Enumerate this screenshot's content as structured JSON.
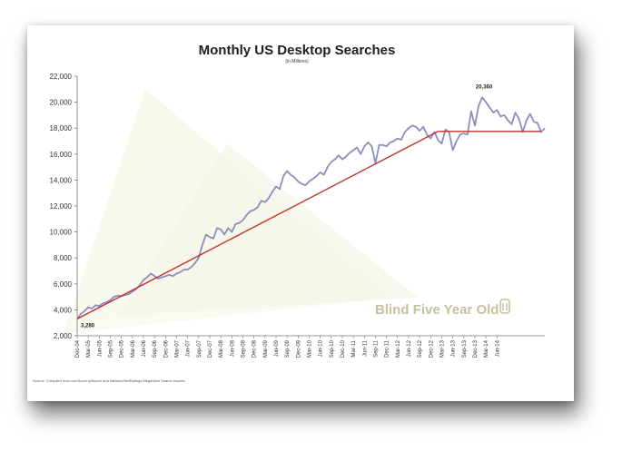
{
  "chart_data": {
    "type": "line",
    "title": "Monthly US Desktop Searches",
    "subtitle": "(in Millions)",
    "ylim": [
      2000,
      22000
    ],
    "yticks": [
      "2,000",
      "4,000",
      "6,000",
      "8,000",
      "10,000",
      "12,000",
      "14,000",
      "16,000",
      "18,000",
      "20,000",
      "22,000"
    ],
    "ytick_values": [
      2000,
      4000,
      6000,
      8000,
      10000,
      12000,
      14000,
      16000,
      18000,
      20000,
      22000
    ],
    "xticks": [
      "Dec-04",
      "Mar-05",
      "Jun-05",
      "Sep-05",
      "Dec-05",
      "Mar-06",
      "Jun-06",
      "Sep-06",
      "Dec-06",
      "Mar-07",
      "Jun-07",
      "Sep-07",
      "Dec-07",
      "Mar-08",
      "Jun-08",
      "Sep-08",
      "Dec-08",
      "Mar-09",
      "Jun-09",
      "Sep-09",
      "Dec-09",
      "Mar-10",
      "Jun-10",
      "Sep-10",
      "Dec-10",
      "Mar-11",
      "Jun-11",
      "Sep-11",
      "Dec-11",
      "Mar-12",
      "Jun-12",
      "Sep-12",
      "Dec-12",
      "Mar-13",
      "Jun-13",
      "Sep-13",
      "Dec-13",
      "Mar-14",
      "Jun-14"
    ],
    "series": [
      {
        "color": "#8a8fbd",
        "values": [
          3280,
          3700,
          3900,
          4200,
          4100,
          4350,
          4300,
          4500,
          4600,
          4750,
          5000,
          5100,
          5050,
          5150,
          5200,
          5400,
          5600,
          5900,
          6300,
          6500,
          6800,
          6600,
          6400,
          6500,
          6600,
          6700,
          6600,
          6800,
          6900,
          7100,
          7100,
          7300,
          7600,
          8000,
          9000,
          9800,
          9600,
          9500,
          10300,
          10200,
          9800,
          10300,
          10000,
          10600,
          10700,
          10900,
          11300,
          11600,
          11700,
          11900,
          12400,
          12300,
          12600,
          13100,
          13500,
          13300,
          14300,
          14700,
          14400,
          14200,
          13900,
          13700,
          13600,
          13900,
          14100,
          14300,
          14600,
          14400,
          15000,
          15400,
          15600,
          15900,
          15600,
          15800,
          16100,
          16300,
          16500,
          16000,
          16600,
          16900,
          16600,
          15300,
          16700,
          16700,
          16600,
          16900,
          17000,
          17200,
          17100,
          17700,
          18000,
          18200,
          18100,
          17800,
          18100,
          17500,
          17200,
          17700,
          17100,
          16800,
          17900,
          17700,
          16300,
          17000,
          17500,
          17600,
          17500,
          19300,
          18200,
          19700,
          20360,
          20000,
          19600,
          19200,
          19400,
          18900,
          19000,
          18600,
          18300,
          19200,
          18700,
          17700,
          18600,
          19100,
          18500,
          18400,
          17700,
          18000
        ],
        "peak_label": "20,360",
        "start_label": "3,280"
      }
    ],
    "trendlines": [
      {
        "color": "#c0302a",
        "points": [
          [
            0,
            3300
          ],
          [
            98,
            17750
          ]
        ]
      },
      {
        "color": "#c0302a",
        "points": [
          [
            98,
            17750
          ],
          [
            126,
            17750
          ]
        ]
      }
    ],
    "grid": false,
    "legend": "none",
    "source_note": "Source: Compiled from comScore qSearch and Nielsen//NetRatings MegaView Search reports.",
    "watermark": "Blind Five Year Old"
  }
}
